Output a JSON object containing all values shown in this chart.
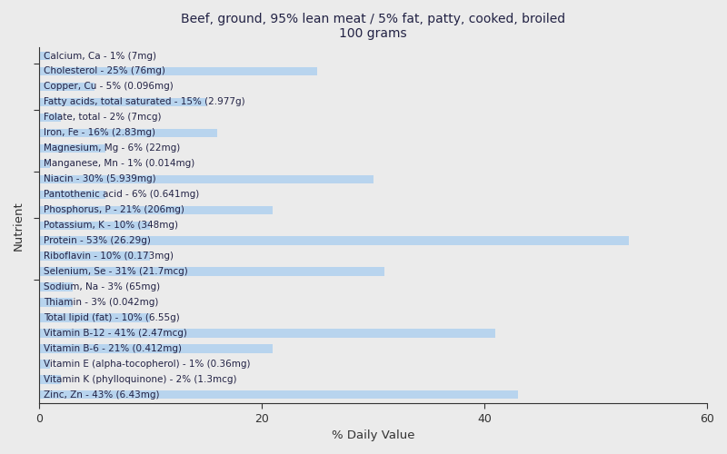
{
  "title": "Beef, ground, 95% lean meat / 5% fat, patty, cooked, broiled\n100 grams",
  "xlabel": "% Daily Value",
  "ylabel": "Nutrient",
  "xlim": [
    0,
    60
  ],
  "xticks": [
    0,
    20,
    40,
    60
  ],
  "background_color": "#ebebeb",
  "bar_color": "#b8d4ee",
  "nutrients": [
    {
      "label": "Calcium, Ca - 1% (7mg)",
      "value": 1
    },
    {
      "label": "Cholesterol - 25% (76mg)",
      "value": 25
    },
    {
      "label": "Copper, Cu - 5% (0.096mg)",
      "value": 5
    },
    {
      "label": "Fatty acids, total saturated - 15% (2.977g)",
      "value": 15
    },
    {
      "label": "Folate, total - 2% (7mcg)",
      "value": 2
    },
    {
      "label": "Iron, Fe - 16% (2.83mg)",
      "value": 16
    },
    {
      "label": "Magnesium, Mg - 6% (22mg)",
      "value": 6
    },
    {
      "label": "Manganese, Mn - 1% (0.014mg)",
      "value": 1
    },
    {
      "label": "Niacin - 30% (5.939mg)",
      "value": 30
    },
    {
      "label": "Pantothenic acid - 6% (0.641mg)",
      "value": 6
    },
    {
      "label": "Phosphorus, P - 21% (206mg)",
      "value": 21
    },
    {
      "label": "Potassium, K - 10% (348mg)",
      "value": 10
    },
    {
      "label": "Protein - 53% (26.29g)",
      "value": 53
    },
    {
      "label": "Riboflavin - 10% (0.173mg)",
      "value": 10
    },
    {
      "label": "Selenium, Se - 31% (21.7mcg)",
      "value": 31
    },
    {
      "label": "Sodium, Na - 3% (65mg)",
      "value": 3
    },
    {
      "label": "Thiamin - 3% (0.042mg)",
      "value": 3
    },
    {
      "label": "Total lipid (fat) - 10% (6.55g)",
      "value": 10
    },
    {
      "label": "Vitamin B-12 - 41% (2.47mcg)",
      "value": 41
    },
    {
      "label": "Vitamin B-6 - 21% (0.412mg)",
      "value": 21
    },
    {
      "label": "Vitamin E (alpha-tocopherol) - 1% (0.36mg)",
      "value": 1
    },
    {
      "label": "Vitamin K (phylloquinone) - 2% (1.3mcg)",
      "value": 2
    },
    {
      "label": "Zinc, Zn - 43% (6.43mg)",
      "value": 43
    }
  ],
  "title_color": "#222244",
  "label_color": "#222244",
  "tick_color": "#333333",
  "axis_color": "#333333",
  "title_fontsize": 10,
  "label_fontsize": 7.5,
  "tick_fontsize": 9,
  "bar_height": 0.55
}
